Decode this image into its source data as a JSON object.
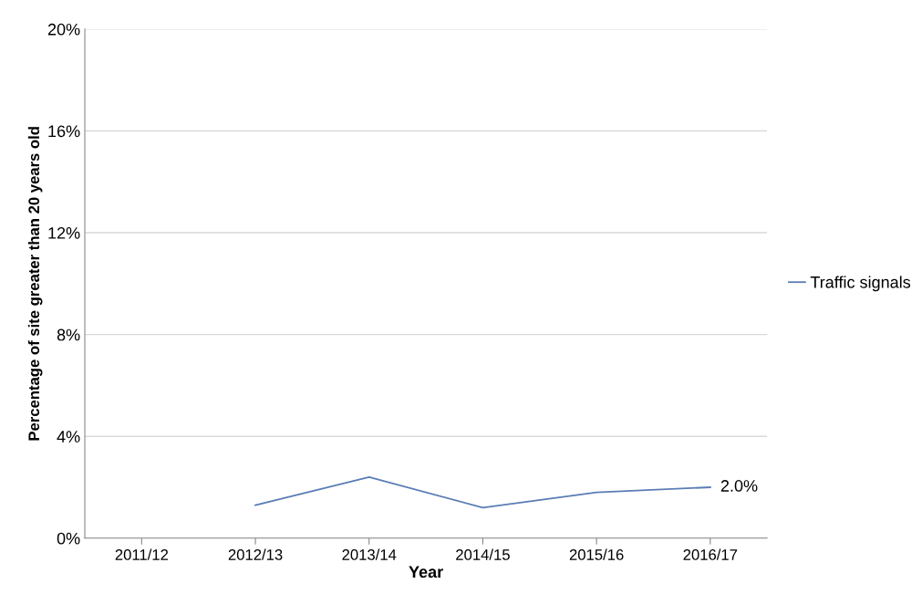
{
  "chart_data": {
    "type": "line",
    "xlabel": "Year",
    "ylabel": "Percentage of site greater than 20 years old",
    "categories": [
      "2011/12",
      "2012/13",
      "2013/14",
      "2014/15",
      "2015/16",
      "2016/17"
    ],
    "series": [
      {
        "name": "Traffic signals",
        "color": "#5b7db5",
        "values": [
          null,
          1.3,
          2.4,
          1.2,
          1.8,
          2.0
        ],
        "value_labels": [
          null,
          null,
          null,
          null,
          null,
          "2.0%"
        ]
      }
    ],
    "ylim": [
      0,
      20
    ],
    "yticks": [
      {
        "value": 0,
        "label": "0%"
      },
      {
        "value": 4,
        "label": "4%"
      },
      {
        "value": 8,
        "label": "8%"
      },
      {
        "value": 12,
        "label": "12%"
      },
      {
        "value": 16,
        "label": "16%"
      },
      {
        "value": 20,
        "label": "20%"
      }
    ],
    "grid": "y",
    "legend": "right",
    "marker": "none",
    "line_style": "solid"
  }
}
